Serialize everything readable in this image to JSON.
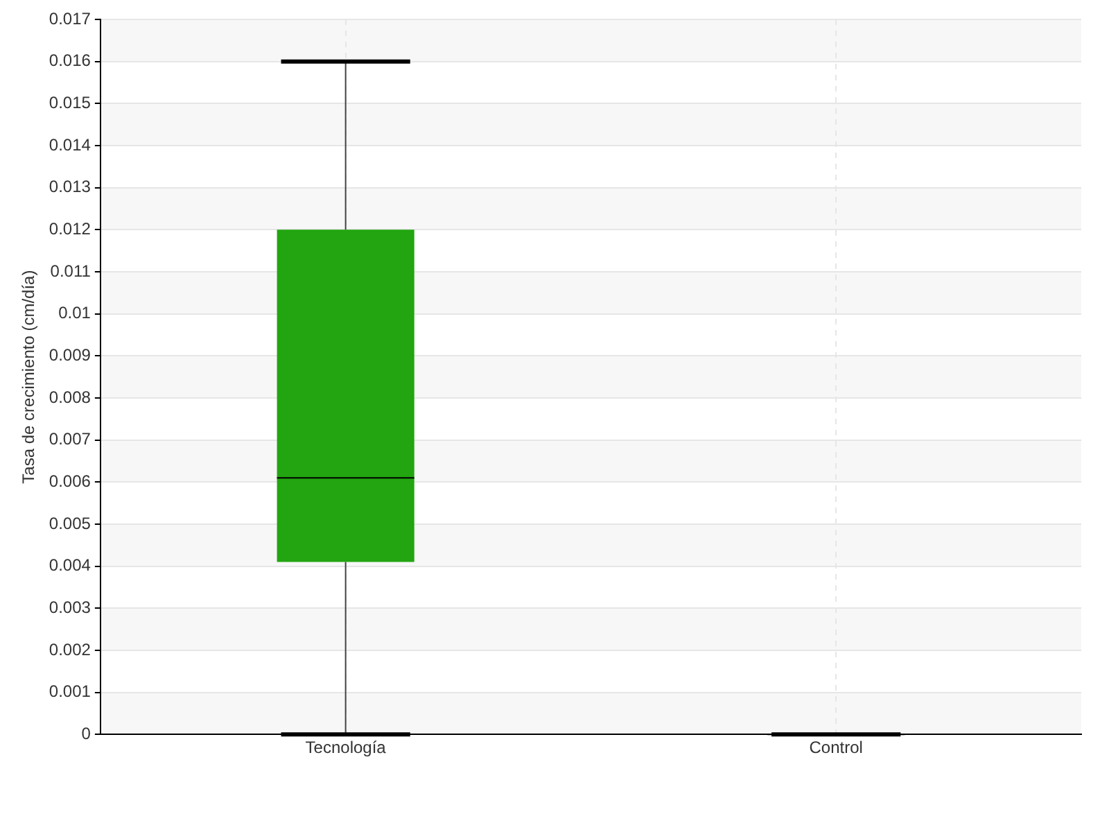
{
  "chart_data": {
    "type": "box",
    "ylabel": "Tasa de crecimiento (cm/día)",
    "categories": [
      "Tecnología",
      "Control"
    ],
    "series": [
      {
        "colors": [
          "#22a510",
          "#000000"
        ],
        "boxes": [
          {
            "low": 0,
            "q1": 0.0041,
            "median": 0.0061,
            "q3": 0.012,
            "high": 0.016
          },
          {
            "low": 0,
            "q1": 0,
            "median": 0,
            "q3": 0,
            "high": 0
          }
        ]
      }
    ],
    "ylim": [
      0,
      0.017
    ],
    "yticks": [
      0,
      0.001,
      0.002,
      0.003,
      0.004,
      0.005,
      0.006,
      0.007,
      0.008,
      0.009,
      0.01,
      0.011,
      0.012,
      0.013,
      0.014,
      0.015,
      0.016,
      0.017
    ],
    "grid": true
  }
}
